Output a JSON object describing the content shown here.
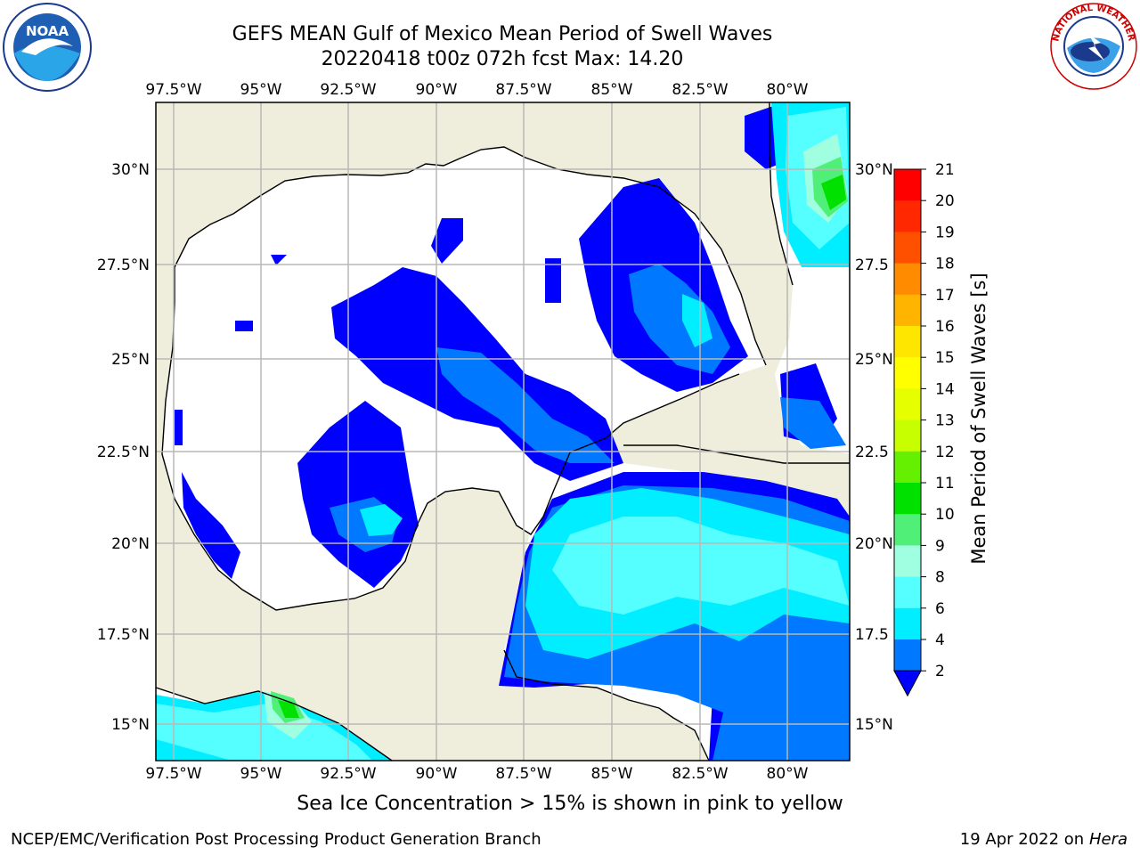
{
  "title_line1": "GEFS MEAN Gulf of Mexico Mean Period of Swell Waves",
  "title_line2": "20220418 t00z 072h fcst   Max: 14.20",
  "note": "Sea Ice Concentration > 15% is shown in pink to yellow",
  "footer_left": "NCEP/EMC/Verification Post Processing Product Generation Branch",
  "footer_right_date": "19 Apr 2022 on ",
  "footer_right_host": "Hera",
  "logos": {
    "left": {
      "name": "noaa-logo-icon",
      "text": "NOAA"
    },
    "right": {
      "name": "nws-logo-icon",
      "text": "NATIONAL WEATHER SERVICE"
    }
  },
  "map": {
    "lon_ticks_top": [
      "97.5°W",
      "95°W",
      "92.5°W",
      "90°W",
      "87.5°W",
      "85°W",
      "82.5°W",
      "80°W"
    ],
    "lon_ticks_bottom": [
      "97.5°W",
      "95°W",
      "92.5°W",
      "90°W",
      "87.5°W",
      "85°W",
      "82.5°W",
      "80°W"
    ],
    "lat_ticks_left": [
      "30°N",
      "27.5°N",
      "25°N",
      "22.5°N",
      "20°N",
      "17.5°N",
      "15°N"
    ],
    "lat_ticks_right": [
      "30°N",
      "27.5",
      "25°N",
      "22.5",
      "20°N",
      "17.5",
      "15°N"
    ],
    "colors": {
      "land": "#efeedd",
      "sea_low": "#ffffff",
      "grid": "#b8b8b8"
    }
  },
  "colorbar": {
    "label": "Mean Period of Swell Waves [s]",
    "ticks": [
      "21",
      "20",
      "19",
      "18",
      "17",
      "16",
      "15",
      "14",
      "13",
      "12",
      "11",
      "10",
      "9",
      "8",
      "6",
      "4",
      "2"
    ],
    "levels": [
      {
        "from": 20,
        "to": 21,
        "color": "#ff0000"
      },
      {
        "from": 19,
        "to": 20,
        "color": "#ff2800"
      },
      {
        "from": 18,
        "to": 19,
        "color": "#ff5000"
      },
      {
        "from": 17,
        "to": 18,
        "color": "#ff8c00"
      },
      {
        "from": 16,
        "to": 17,
        "color": "#ffb400"
      },
      {
        "from": 15,
        "to": 16,
        "color": "#ffe600"
      },
      {
        "from": 14,
        "to": 15,
        "color": "#ffff00"
      },
      {
        "from": 13,
        "to": 14,
        "color": "#e6ff00"
      },
      {
        "from": 12,
        "to": 13,
        "color": "#c8ff00"
      },
      {
        "from": 11,
        "to": 12,
        "color": "#64f000"
      },
      {
        "from": 10,
        "to": 11,
        "color": "#00e100"
      },
      {
        "from": 9,
        "to": 10,
        "color": "#50f078"
      },
      {
        "from": 8,
        "to": 9,
        "color": "#a0ffe0"
      },
      {
        "from": 6,
        "to": 8,
        "color": "#55ffff"
      },
      {
        "from": 4,
        "to": 6,
        "color": "#00eeff"
      },
      {
        "from": 2,
        "to": 4,
        "color": "#0078ff"
      },
      {
        "from": 0,
        "to": 2,
        "color": "#0000ff"
      }
    ]
  }
}
